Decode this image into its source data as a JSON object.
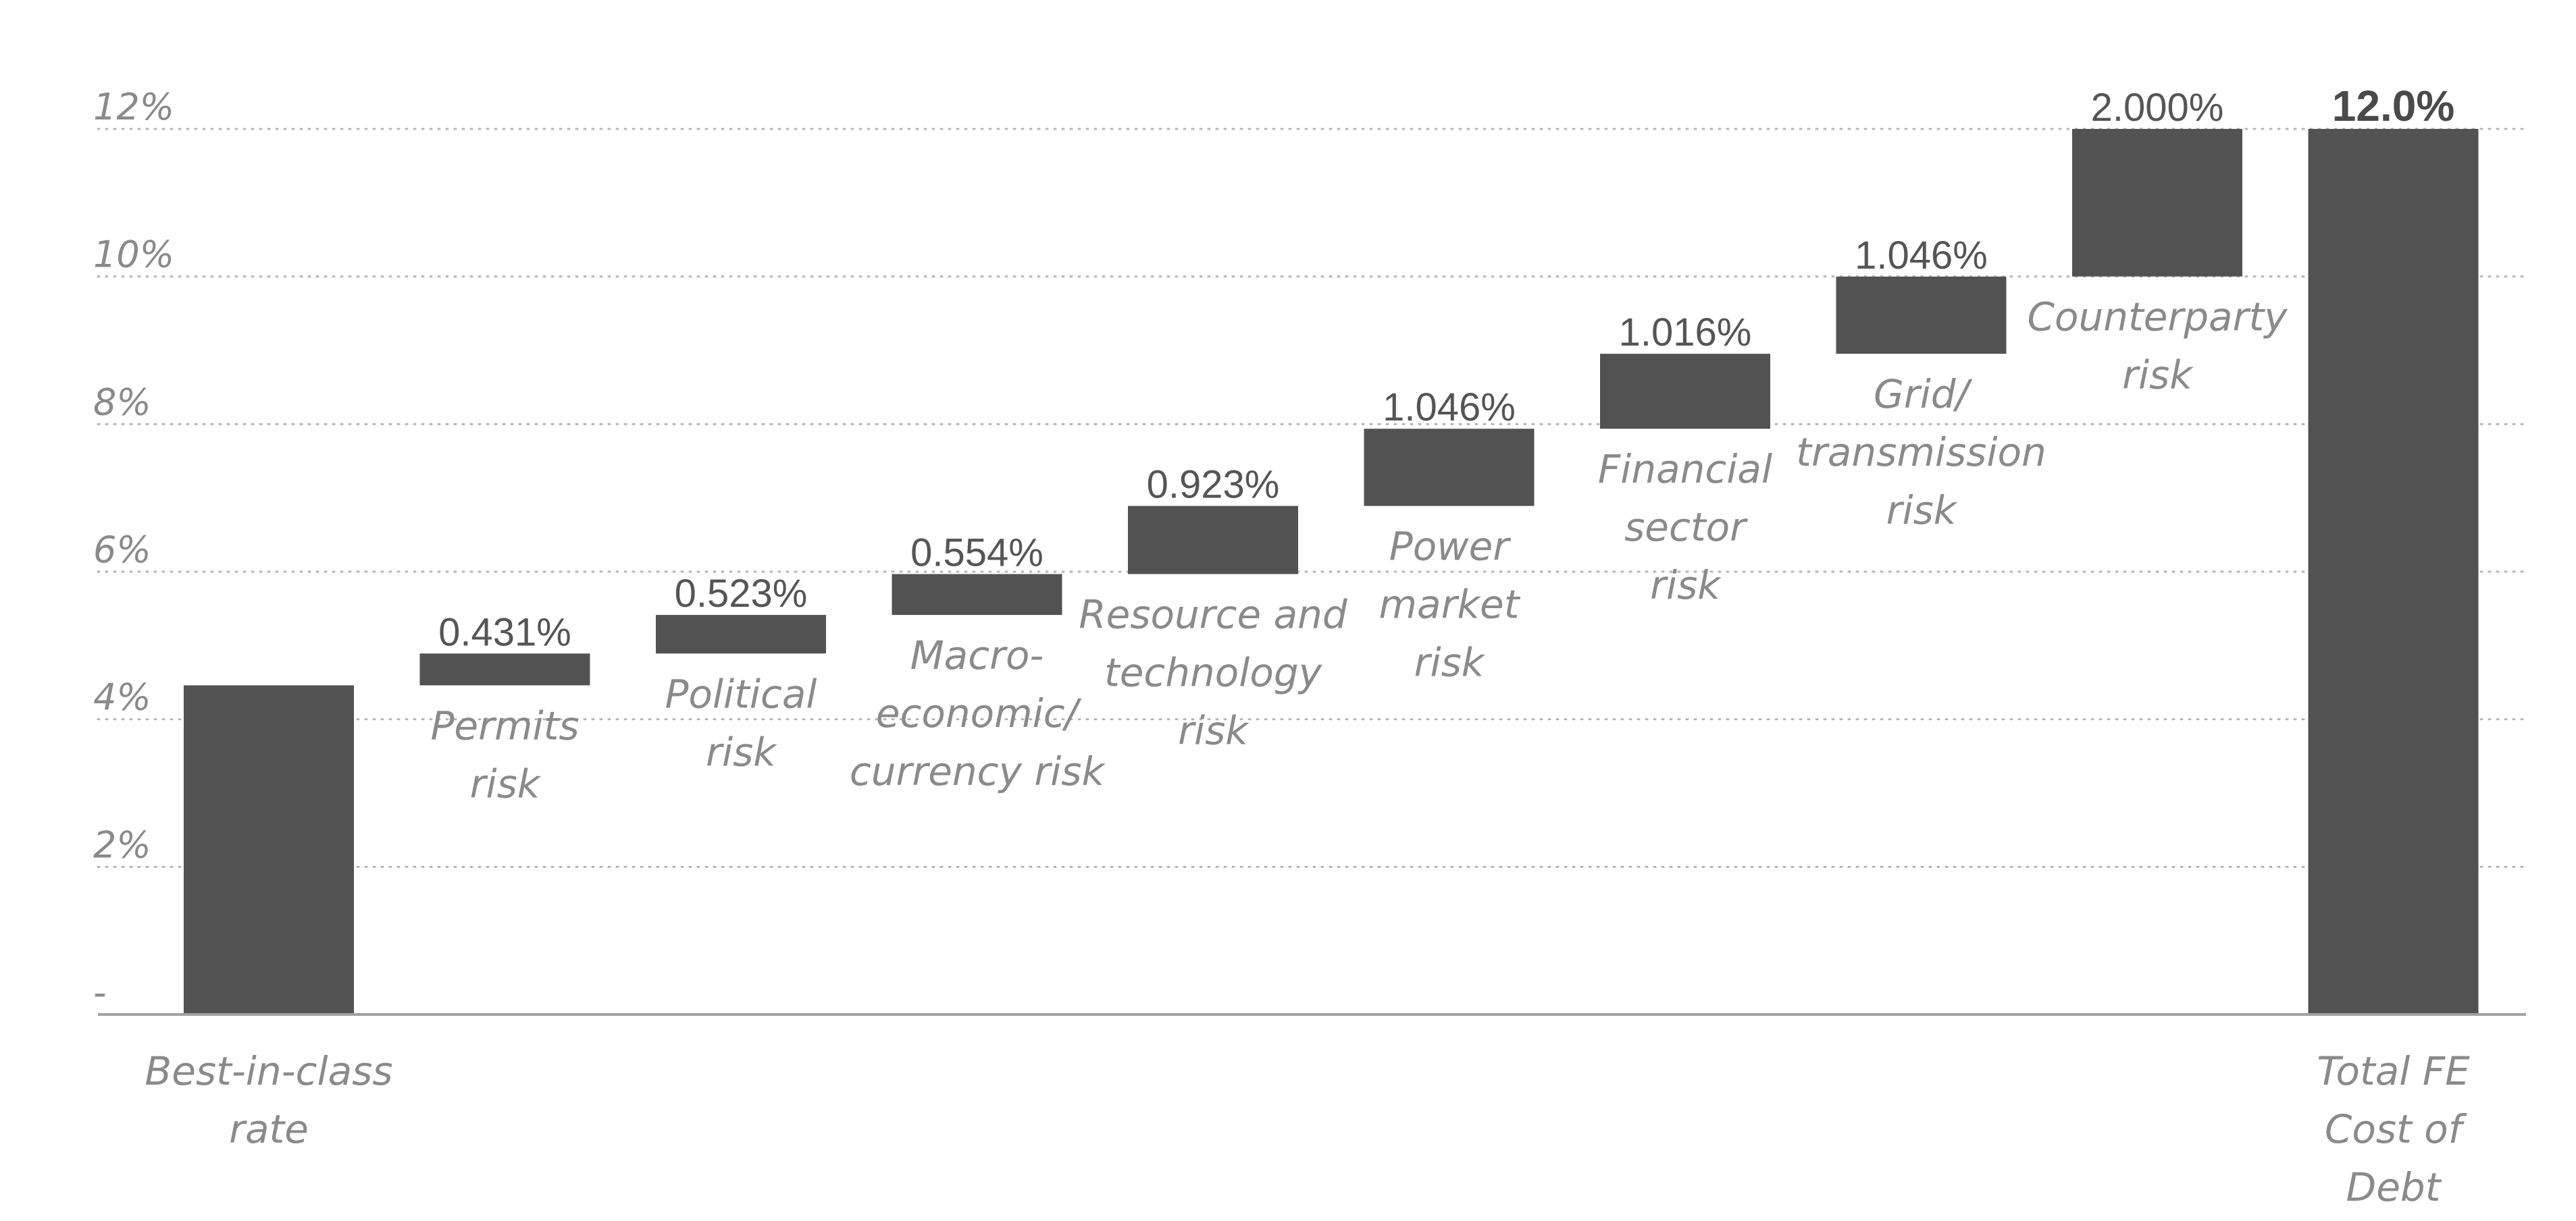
{
  "chart_data": {
    "type": "bar",
    "subtype": "waterfall",
    "title": "",
    "xlabel": "",
    "ylabel": "",
    "ylim": [
      0,
      12
    ],
    "y_ticks": [
      {
        "value": 0,
        "label": "-"
      },
      {
        "value": 2,
        "label": "2%"
      },
      {
        "value": 4,
        "label": "4%"
      },
      {
        "value": 6,
        "label": "6%"
      },
      {
        "value": 8,
        "label": "8%"
      },
      {
        "value": 10,
        "label": "10%"
      },
      {
        "value": 12,
        "label": "12%"
      }
    ],
    "grid": "horizontal dotted",
    "bar_color": "#525252",
    "bars": [
      {
        "label": [
          "Best-in-class",
          "rate"
        ],
        "kind": "base",
        "start": 0,
        "end": 4.46,
        "value_label": ""
      },
      {
        "label": [
          "Permits",
          "risk"
        ],
        "kind": "increment",
        "start": 4.46,
        "end": 4.891,
        "value_label": "0.431%"
      },
      {
        "label": [
          "Political",
          "risk"
        ],
        "kind": "increment",
        "start": 4.891,
        "end": 5.414,
        "value_label": "0.523%"
      },
      {
        "label": [
          "Macro-",
          "economic/",
          "currency risk"
        ],
        "kind": "increment",
        "start": 5.414,
        "end": 5.968,
        "value_label": "0.554%"
      },
      {
        "label": [
          "Resource and",
          "technology",
          "risk"
        ],
        "kind": "increment",
        "start": 5.968,
        "end": 6.891,
        "value_label": "0.923%"
      },
      {
        "label": [
          "Power",
          "market",
          "risk"
        ],
        "kind": "increment",
        "start": 6.891,
        "end": 7.937,
        "value_label": "1.046%"
      },
      {
        "label": [
          "Financial",
          "sector",
          "risk"
        ],
        "kind": "increment",
        "start": 7.937,
        "end": 8.953,
        "value_label": "1.016%"
      },
      {
        "label": [
          "Grid/",
          "transmission",
          "risk"
        ],
        "kind": "increment",
        "start": 8.953,
        "end": 9.999,
        "value_label": "1.046%"
      },
      {
        "label": [
          "Counterparty",
          "risk"
        ],
        "kind": "increment",
        "start": 10.0,
        "end": 12.0,
        "value_label": "2.000%"
      },
      {
        "label": [
          "Total FE",
          "Cost of",
          "Debt"
        ],
        "kind": "total",
        "start": 0,
        "end": 12.0,
        "value_label": "12.0%"
      }
    ]
  }
}
